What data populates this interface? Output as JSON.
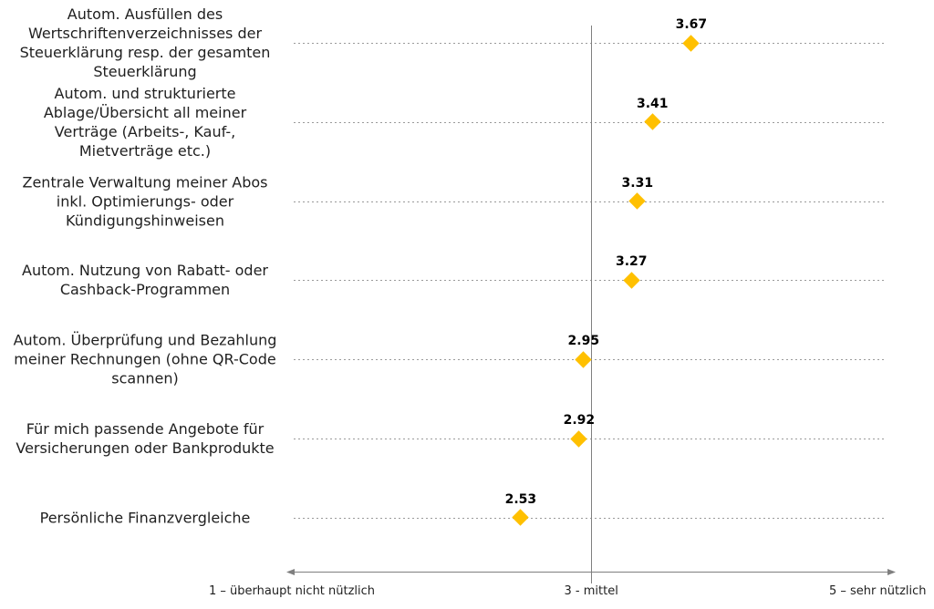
{
  "chart_data": {
    "type": "scatter",
    "subtype": "horizontal-dot-plot",
    "title": "",
    "xlabel": "",
    "ylabel": "",
    "categories": [
      "Autom. Ausfüllen des Wertschriftenverzeichnisses der Steuerklärung resp. der gesamten Steuerklärung",
      "Autom. und strukturierte Ablage/Übersicht all meiner Verträge (Arbeits-, Kauf-, Mietverträge etc.)",
      "Zentrale Verwaltung meiner Abos inkl. Optimierungs- oder Kündigungshinweisen",
      "Autom. Nutzung von Rabatt- oder Cashback-Programmen",
      "Autom. Überprüfung und Bezahlung meiner Rechnungen (ohne QR-Code scannen)",
      "Für mich passende Angebote für Versicherungen oder Bankprodukte",
      "Persönliche Finanzvergleiche"
    ],
    "category_lines": [
      [
        "Autom. Ausfüllen des",
        "Wertschriftenverzeichnisses der",
        "Steuerklärung resp. der gesamten",
        "Steuerklärung"
      ],
      [
        "Autom. und strukturierte",
        "Ablage/Übersicht all meiner",
        "Verträge (Arbeits-, Kauf-,",
        "Mietverträge etc.)"
      ],
      [
        "Zentrale Verwaltung meiner Abos",
        "inkl. Optimierungs- oder",
        "Kündigungshinweisen"
      ],
      [
        "Autom. Nutzung von Rabatt- oder",
        "Cashback-Programmen"
      ],
      [
        "Autom. Überprüfung und Bezahlung",
        "meiner Rechnungen (ohne QR-Code",
        "scannen)"
      ],
      [
        "Für mich passende Angebote für",
        "Versicherungen oder Bankprodukte"
      ],
      [
        "Persönliche Finanzvergleiche"
      ]
    ],
    "values": [
      3.67,
      3.41,
      3.31,
      3.27,
      2.95,
      2.92,
      2.53
    ],
    "value_labels": [
      "3.67",
      "3.41",
      "3.31",
      "3.27",
      "2.95",
      "2.92",
      "2.53"
    ],
    "xlim": [
      1,
      5
    ],
    "x_ticks": [
      {
        "value": 1,
        "label": "1 – überhaupt nicht nützlich"
      },
      {
        "value": 3,
        "label": "3 - mittel"
      },
      {
        "value": 5,
        "label": "5 – sehr nützlich"
      }
    ],
    "reference_line_value": 3,
    "marker": "diamond",
    "legend": "none",
    "grid": "dotted-horizontal-per-category",
    "axis_arrow": "double-headed",
    "colors": {
      "marker": "#FFC000",
      "grid_dotted": "#9A9A9A",
      "axis_line": "#7F7F7F",
      "text": "#1F1F1F",
      "value_text": "#000000",
      "background": "#FFFFFF"
    }
  }
}
